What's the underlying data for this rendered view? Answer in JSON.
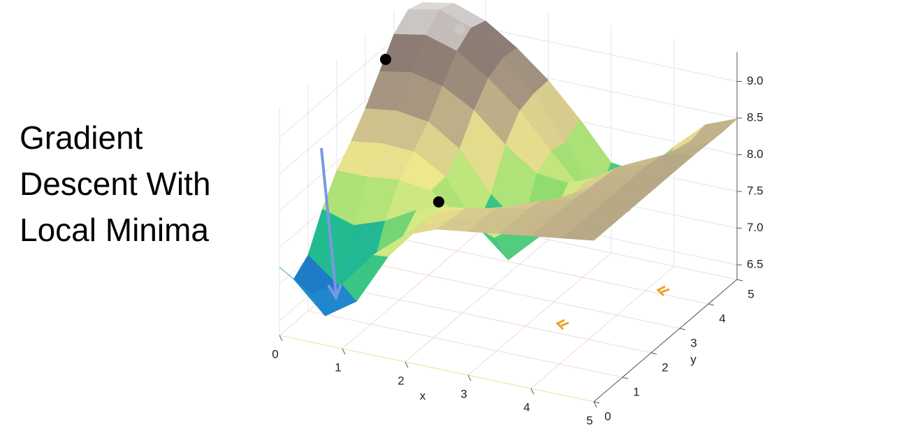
{
  "chart_data": {
    "type": "surface",
    "title": "Gradient Descent With Local Minima",
    "xlabel": "x",
    "ylabel": "y",
    "x": [
      0,
      0.5,
      1,
      1.5,
      2,
      2.5,
      3,
      3.5,
      4,
      4.5,
      5
    ],
    "y": [
      0,
      0.5,
      1,
      1.5,
      2,
      2.5,
      3,
      3.5,
      4,
      4.5,
      5
    ],
    "z": [
      [
        7.23,
        6.96,
        7.18,
        7.67,
        8.03,
        8.2,
        8.26,
        8.32,
        8.38,
        8.44,
        8.5
      ],
      [
        6.9,
        6.49,
        6.78,
        7.48,
        7.97,
        8.17,
        8.26,
        8.32,
        8.38,
        8.44,
        8.5
      ],
      [
        7.06,
        6.72,
        6.97,
        7.57,
        7.98,
        8.15,
        8.24,
        8.32,
        8.38,
        8.44,
        8.5
      ],
      [
        7.52,
        7.39,
        7.54,
        7.78,
        7.91,
        7.97,
        8.1,
        8.27,
        8.38,
        8.44,
        8.5
      ],
      [
        7.88,
        7.88,
        7.93,
        7.87,
        7.57,
        7.42,
        7.71,
        8.13,
        8.35,
        8.44,
        8.5
      ],
      [
        8.11,
        8.17,
        8.15,
        7.9,
        7.32,
        6.95,
        7.36,
        8.01,
        8.33,
        8.44,
        8.5
      ],
      [
        8.39,
        8.45,
        8.39,
        8.11,
        7.58,
        7.22,
        7.49,
        8.02,
        8.31,
        8.44,
        8.5
      ],
      [
        8.73,
        8.81,
        8.71,
        8.47,
        8.09,
        7.79,
        7.75,
        7.93,
        8.2,
        8.4,
        8.5
      ],
      [
        9.07,
        9.15,
        9.02,
        8.74,
        8.39,
        7.93,
        7.48,
        7.46,
        7.93,
        8.32,
        8.49
      ],
      [
        9.24,
        9.33,
        9.17,
        8.85,
        8.46,
        7.88,
        7.2,
        7.12,
        7.73,
        8.27,
        8.48
      ],
      [
        9.17,
        9.25,
        9.1,
        8.82,
        8.47,
        8.03,
        7.53,
        7.48,
        7.93,
        8.32,
        8.49
      ]
    ],
    "xlim": [
      0,
      5
    ],
    "ylim": [
      0,
      5
    ],
    "zlim": [
      6.3,
      9.4
    ],
    "xticks": [
      0,
      1,
      2,
      3,
      4,
      5
    ],
    "yticks": [
      0,
      1,
      2,
      3,
      4,
      5
    ],
    "zticks": [
      6.5,
      {
        "value": 7,
        "label": "7.0"
      },
      7.5,
      {
        "value": 8,
        "label": "8.0"
      },
      8.5,
      {
        "value": 9,
        "label": "9.0"
      }
    ],
    "colormap": [
      "#1f3a9e",
      "#1e86cf",
      "#22bf8a",
      "#8fdc6e",
      "#f2ee8c",
      "#d2c48e",
      "#a39380",
      "#8a7a72",
      "#f4f4f4"
    ],
    "grid": true
  }
}
